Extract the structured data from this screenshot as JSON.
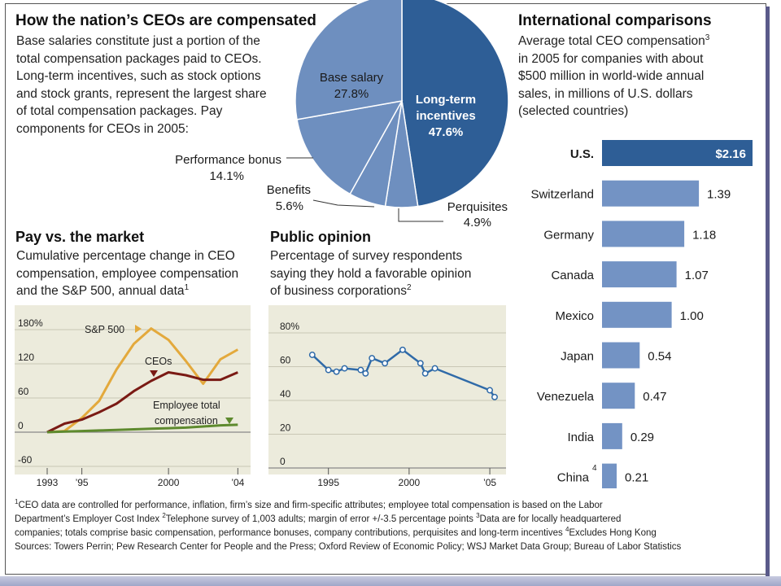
{
  "colors": {
    "pie_dark": "#2e5e96",
    "pie_light": "#6e8fbf",
    "bar_us": "#2e5e96",
    "bar": "#7393c4",
    "panel_bg": "#ecebdc",
    "sp500": "#e3a93c",
    "ceos": "#7a1a14",
    "employee": "#5e8a2e",
    "opinion": "#2f6aa8"
  },
  "pie": {
    "title": "How the nation’s CEOs are compensated",
    "desc": "Base salaries constitute a portion of the total compensation packages paid to CEOs. Long-term incentives, such as stock options and stock grants, represent the largest share of total compensation packages. Pay components for CEOs in 2005:",
    "desc_lines": [
      "Base salaries constitute just a portion of the",
      "total compensation packages paid to CEOs.",
      "Long-term incentives, such as stock options",
      "and stock grants, represent the largest share",
      "of total compensation packages. Pay",
      "components for CEOs in 2005:"
    ],
    "labels": {
      "base_name": "Base salary",
      "base_pct": "27.8%",
      "lti_l1": "Long-term",
      "lti_l2": "incentives",
      "lti_pct": "47.6%",
      "perf_name": "Performance bonus",
      "perf_pct": "14.1%",
      "ben_name": "Benefits",
      "ben_pct": "5.6%",
      "perq_name": "Perquisites",
      "perq_pct": "4.9%"
    }
  },
  "intl": {
    "title": "International comparisons",
    "desc_lines": [
      "Average total CEO compensation",
      "in 2005 for companies with about",
      "$500 million in world-wide annual",
      "sales, in millions of U.S. dollars",
      "(selected countries)"
    ],
    "desc_sup": "3",
    "labels": [
      "U.S.",
      "Switzerland",
      "Germany",
      "Canada",
      "Mexico",
      "Japan",
      "Venezuela",
      "India",
      "China"
    ],
    "china_sup": "4",
    "value_labels": [
      "$2.16",
      "1.39",
      "1.18",
      "1.07",
      "1.00",
      "0.54",
      "0.47",
      "0.29",
      "0.21"
    ]
  },
  "market": {
    "title": "Pay vs. the market",
    "desc_lines": [
      "Cumulative percentage change in CEO",
      "compensation, employee compensation",
      "and the S&P 500, annual data"
    ],
    "desc_sup": "1",
    "y_ticks": [
      "180%",
      "120",
      "60",
      "0",
      "-60"
    ],
    "x_ticks": [
      "1993",
      "’95",
      "2000",
      "’04"
    ],
    "sp_label": "S&P 500",
    "ceo_label": "CEOs",
    "emp_l1": "Employee total",
    "emp_l2": "compensation"
  },
  "opinion": {
    "title": "Public opinion",
    "desc_lines": [
      "Percentage of survey respondents",
      "saying they hold a favorable opinion",
      "of business corporations"
    ],
    "desc_sup": "2",
    "y_ticks": [
      "80%",
      "60",
      "40",
      "20",
      "0"
    ],
    "x_ticks": [
      "1995",
      "2000",
      "’05"
    ]
  },
  "footnotes": {
    "line1": "CEO data are controlled for performance, inflation, firm’s size and firm-specific attributes; employee total compensation is based on the Labor",
    "line2a": "Department’s Employer Cost Index ",
    "line2b": "Telephone survey of 1,003 adults; margin of error +/-3.5 percentage points ",
    "line2c": "Data are for locally headquartered",
    "line3a": "companies; totals comprise basic compensation, performance bonuses, company contributions, perquisites and long-term incentives  ",
    "line3b": "Excludes Hong Kong",
    "sources": "Sources: Towers Perrin; Pew Research Center for People and the Press; Oxford Review of Economic Policy; WSJ Market Data Group; Bureau of Labor Statistics",
    "n1": "1",
    "n2": "2",
    "n3": "3",
    "n4": "4"
  },
  "chart_data": [
    {
      "type": "pie",
      "title": "How the nation’s CEOs are compensated",
      "categories": [
        "Long-term incentives",
        "Perquisites",
        "Benefits",
        "Performance bonus",
        "Base salary"
      ],
      "values": [
        47.6,
        4.9,
        5.6,
        14.1,
        27.8
      ]
    },
    {
      "type": "bar",
      "title": "International comparisons",
      "categories": [
        "U.S.",
        "Switzerland",
        "Germany",
        "Canada",
        "Mexico",
        "Japan",
        "Venezuela",
        "India",
        "China"
      ],
      "values": [
        2.16,
        1.39,
        1.18,
        1.07,
        1.0,
        0.54,
        0.47,
        0.29,
        0.21
      ],
      "xlim": [
        0,
        2.16
      ]
    },
    {
      "type": "line",
      "title": "Pay vs. the market",
      "ylim": [
        -60,
        180
      ],
      "xlim": [
        1993,
        2004.5
      ],
      "series": [
        {
          "name": "S&P 500",
          "x": [
            1993,
            1994,
            1995,
            1996,
            1997,
            1998,
            1999,
            2000,
            2001,
            2002,
            2003,
            2004
          ],
          "y": [
            0,
            2,
            25,
            55,
            110,
            155,
            182,
            162,
            125,
            85,
            128,
            145
          ]
        },
        {
          "name": "CEOs",
          "x": [
            1993,
            1994,
            1995,
            1996,
            1997,
            1998,
            1999,
            2000,
            2001,
            2002,
            2003,
            2004
          ],
          "y": [
            0,
            15,
            22,
            35,
            50,
            72,
            90,
            105,
            100,
            92,
            92,
            105
          ]
        },
        {
          "name": "Employee total compensation",
          "x": [
            1993,
            1994,
            1995,
            1996,
            1997,
            1998,
            1999,
            2000,
            2001,
            2002,
            2003,
            2004
          ],
          "y": [
            0,
            1,
            2,
            3,
            4,
            5,
            6,
            7,
            8,
            10,
            12,
            13
          ]
        }
      ]
    },
    {
      "type": "line",
      "title": "Public opinion",
      "ylim": [
        0,
        80
      ],
      "xlim": [
        1993,
        2005.5
      ],
      "series": [
        {
          "x": [
            1994,
            1995,
            1995.5,
            1996,
            1997,
            1997.3,
            1997.7,
            1998.5,
            1999.6,
            2000.7,
            2001,
            2001.6,
            2005,
            2005.3
          ],
          "y": [
            67,
            58,
            57,
            59,
            58,
            56,
            65,
            62,
            70,
            62,
            56,
            59,
            46,
            42
          ]
        }
      ]
    }
  ]
}
